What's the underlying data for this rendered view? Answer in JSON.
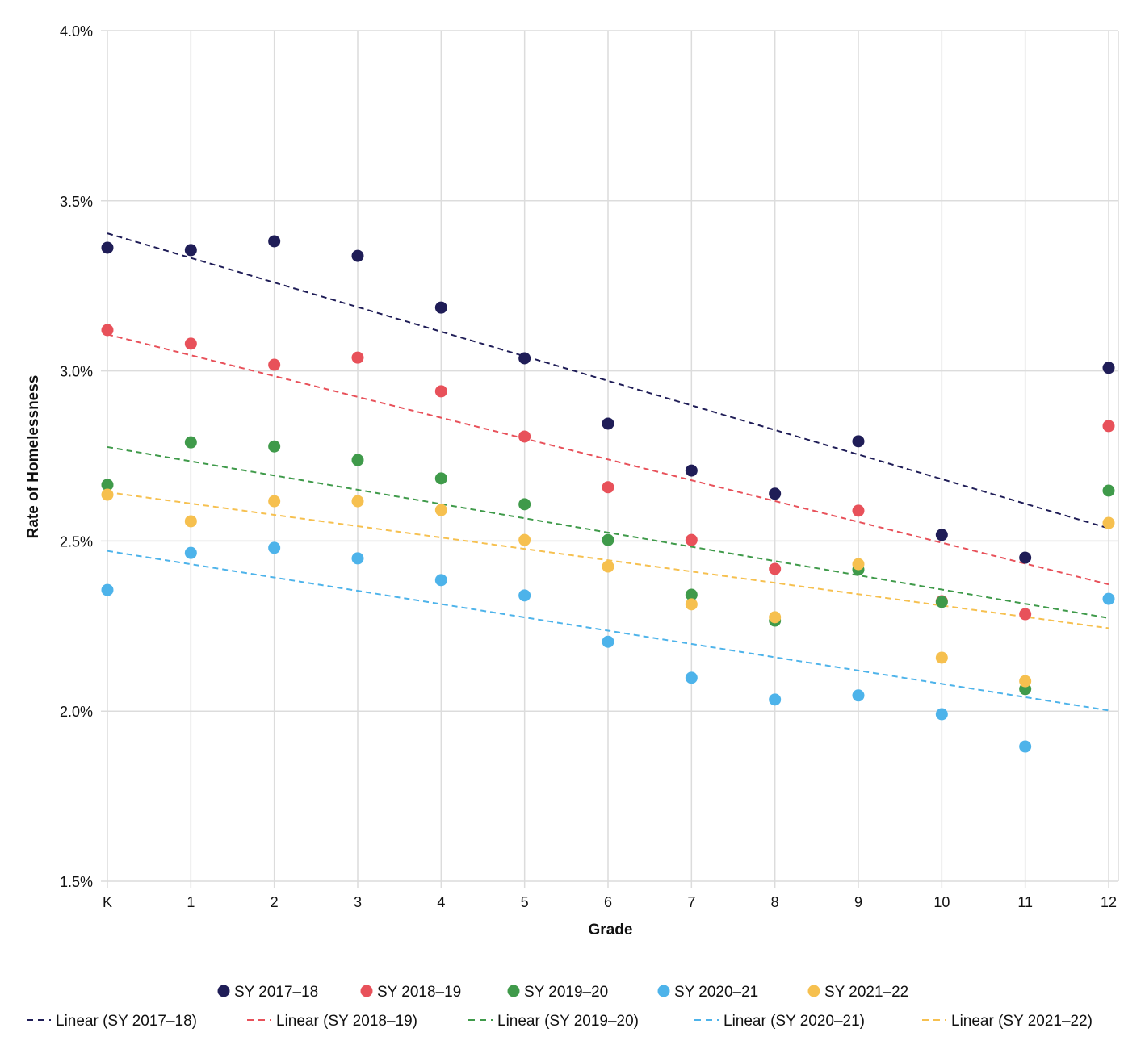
{
  "chart_data": {
    "type": "scatter",
    "xlabel": "Grade",
    "ylabel": "Rate of Homelessness",
    "categories": [
      "K",
      "1",
      "2",
      "3",
      "4",
      "5",
      "6",
      "7",
      "8",
      "9",
      "10",
      "11",
      "12"
    ],
    "ylim": [
      1.5,
      4.0
    ],
    "yticks": [
      "1.5%",
      "2.0%",
      "2.5%",
      "3.0%",
      "3.5%",
      "4.0%"
    ],
    "ytick_values": [
      1.5,
      2.0,
      2.5,
      3.0,
      3.5,
      4.0
    ],
    "grid": true,
    "legend_placement": "bottom",
    "series": [
      {
        "name": "SY 2017–18",
        "trend_name": "Linear (SY 2017–18)",
        "color": "#1f1d57",
        "values": [
          3.362,
          3.355,
          3.381,
          3.338,
          3.186,
          3.037,
          2.845,
          2.707,
          2.639,
          2.793,
          2.518,
          2.451,
          3.009
        ]
      },
      {
        "name": "SY 2018–19",
        "trend_name": "Linear (SY 2018–19)",
        "color": "#e8515a",
        "values": [
          3.12,
          3.08,
          3.018,
          3.039,
          2.94,
          2.807,
          2.658,
          2.503,
          2.418,
          2.589,
          2.323,
          2.285,
          2.838
        ]
      },
      {
        "name": "SY 2019–20",
        "trend_name": "Linear (SY 2019–20)",
        "color": "#3f9a4a",
        "values": [
          2.665,
          2.79,
          2.778,
          2.738,
          2.684,
          2.608,
          2.503,
          2.342,
          2.266,
          2.416,
          2.321,
          2.065,
          2.648
        ]
      },
      {
        "name": "SY 2020–21",
        "trend_name": "Linear (SY 2020–21)",
        "color": "#4db3ea",
        "values": [
          2.356,
          2.465,
          2.48,
          2.449,
          2.385,
          2.34,
          2.204,
          2.098,
          2.034,
          2.046,
          1.991,
          1.896,
          2.33
        ]
      },
      {
        "name": "SY 2021–22",
        "trend_name": "Linear (SY 2021–22)",
        "color": "#f6c04f",
        "values": [
          2.636,
          2.558,
          2.617,
          2.617,
          2.591,
          2.503,
          2.425,
          2.314,
          2.276,
          2.432,
          2.157,
          2.088,
          2.553
        ]
      }
    ]
  }
}
